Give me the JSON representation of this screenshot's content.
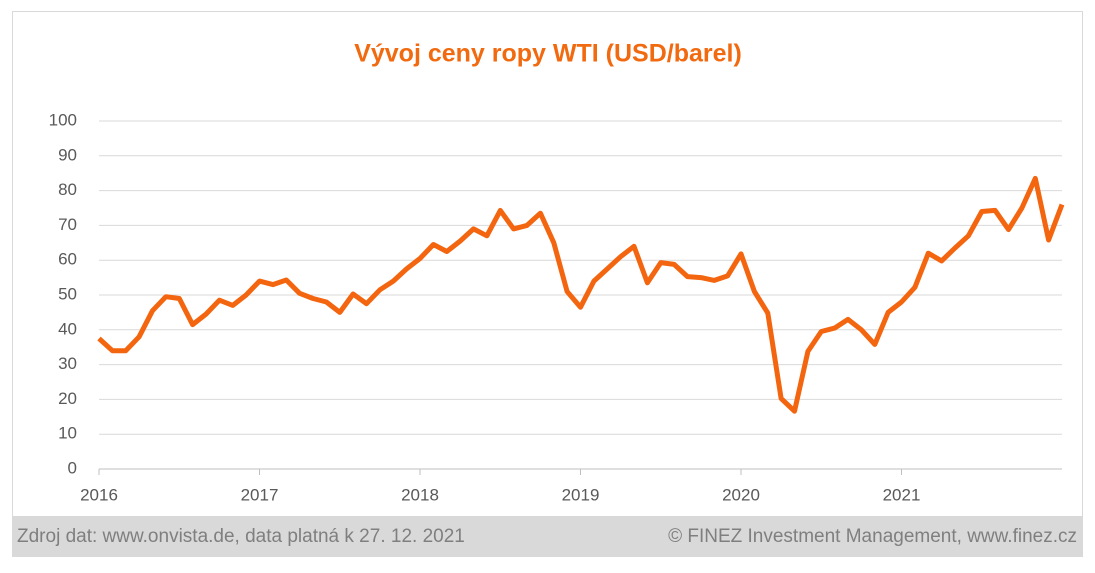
{
  "chart_data": {
    "type": "line",
    "title": "Vývoj ceny ropy WTI (USD/barel)",
    "categories": [
      "2016",
      null,
      null,
      null,
      null,
      null,
      null,
      null,
      null,
      null,
      null,
      null,
      "2017",
      null,
      null,
      null,
      null,
      null,
      null,
      null,
      null,
      null,
      null,
      null,
      "2018",
      null,
      null,
      null,
      null,
      null,
      null,
      null,
      null,
      null,
      null,
      null,
      "2019",
      null,
      null,
      null,
      null,
      null,
      null,
      null,
      null,
      null,
      null,
      null,
      "2020",
      null,
      null,
      null,
      null,
      null,
      null,
      null,
      null,
      null,
      null,
      null,
      "2021",
      null,
      null,
      null,
      null,
      null,
      null,
      null,
      null,
      null,
      null,
      null,
      null
    ],
    "series": [
      {
        "name": "WTI",
        "color": "#f4650f",
        "values": [
          37.5,
          34,
          34,
          38,
          45.5,
          49.5,
          49,
          41.5,
          44.5,
          48.5,
          47,
          50,
          54,
          53,
          54.3,
          50.5,
          49,
          48,
          45,
          50.3,
          47.5,
          51.5,
          54,
          57.5,
          60.5,
          64.5,
          62.5,
          65.5,
          69,
          67,
          74.3,
          69,
          70,
          73.5,
          65,
          51,
          46.5,
          54,
          57.5,
          61,
          64,
          53.5,
          59.3,
          58.8,
          55.3,
          55,
          54.2,
          55.5,
          61.8,
          51,
          44.8,
          20.3,
          16.6,
          33.8,
          39.5,
          40.5,
          43,
          40,
          35.8,
          45,
          48,
          52.2,
          62,
          59.8,
          63.5,
          67,
          74,
          74.3,
          68.8,
          75,
          83.5,
          65.8,
          76
        ]
      }
    ],
    "ylim": [
      0,
      100
    ],
    "yticks": [
      0,
      10,
      20,
      30,
      40,
      50,
      60,
      70,
      80,
      90,
      100
    ],
    "grid": true,
    "source": "Zdroj dat: www.onvista.de, data platná k 27. 12. 2021",
    "credit": "© FINEZ Investment Management, www.finez.cz"
  }
}
